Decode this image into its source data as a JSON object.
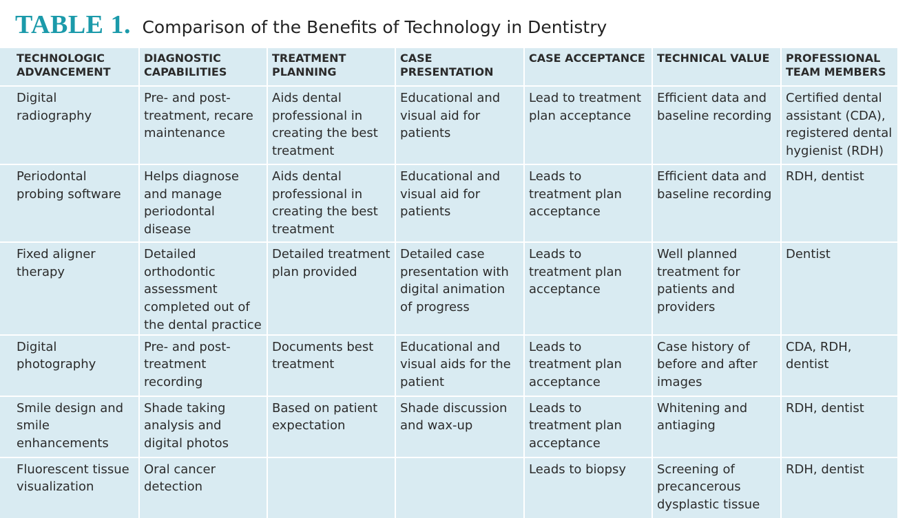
{
  "title": {
    "label": "TABLE 1.",
    "text": "Comparison of the Benefits of Technology in Dentistry"
  },
  "colors": {
    "title_accent": "#1b9aaa",
    "table_background": "#d9ebf2",
    "cell_divider": "#ffffff"
  },
  "table": {
    "headers": [
      [
        "TECHNOLOGIC",
        "ADVANCEMENT"
      ],
      [
        "DIAGNOSTIC",
        "CAPABILITIES"
      ],
      [
        "TREATMENT",
        "PLANNING"
      ],
      [
        "CASE",
        "PRESENTATION"
      ],
      [
        "CASE ACCEPTANCE"
      ],
      [
        "TECHNICAL VALUE"
      ],
      [
        "PROFESSIONAL",
        "TEAM MEMBERS"
      ]
    ],
    "rows": [
      [
        "Digital radiography",
        "Pre- and post-treatment, recare maintenance",
        "Aids dental professional in creating the best treatment",
        "Educational and visual aid for patients",
        "Lead to treatment plan acceptance",
        "Efficient data and baseline recording",
        "Certified dental assistant (CDA), registered dental hygienist (RDH)"
      ],
      [
        "Periodontal probing software",
        "Helps diagnose and manage periodontal disease",
        "Aids dental professional in creating the best treatment",
        "Educational and visual aid for patients",
        "Leads to treatment plan acceptance",
        "Efficient data and baseline recording",
        "RDH, dentist"
      ],
      [
        "Fixed aligner therapy",
        "Detailed orthodontic assessment completed out of the dental practice",
        "Detailed treatment plan provided",
        "Detailed case presentation with digital animation of progress",
        "Leads to treatment plan acceptance",
        "Well planned treatment for patients and providers",
        "Dentist"
      ],
      [
        "Digital photography",
        "Pre- and post-treatment recording",
        "Documents best treatment",
        "Educational and visual aids for the patient",
        "Leads to treatment plan acceptance",
        "Case history of before and after images",
        "CDA, RDH, dentist"
      ],
      [
        "Smile design and smile enhancements",
        "Shade taking analysis and digital photos",
        "Based on patient expectation",
        "Shade discussion and wax-up",
        "Leads to treatment plan acceptance",
        "Whitening and antiaging",
        "RDH, dentist"
      ],
      [
        "Fluorescent tissue visualization",
        "Oral cancer detection",
        "",
        "",
        "Leads to biopsy",
        "Screening of precancerous dysplastic tissue",
        "RDH, dentist"
      ]
    ]
  }
}
